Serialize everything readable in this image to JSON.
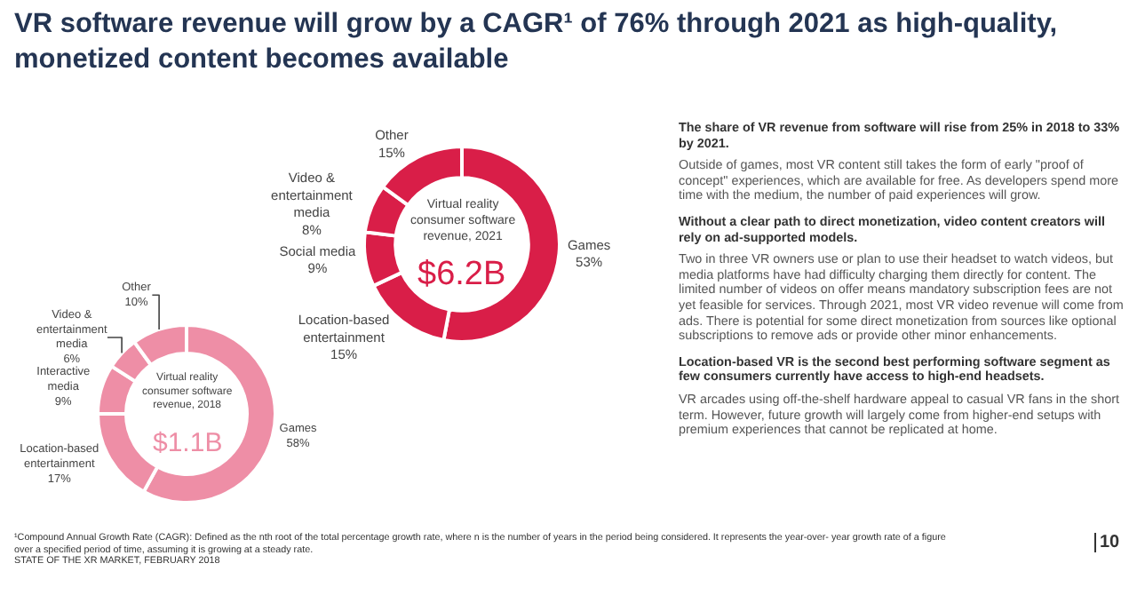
{
  "chart_data": [
    {
      "type": "donut",
      "title": "VR software revenue will grow by a CAGR¹ of 76% through 2021 as high-quality, monetized content becomes available",
      "categories": [
        "Games",
        "Location-based entertainment",
        "Social media",
        "Video & entertainment media",
        "Other"
      ],
      "values": [
        53,
        15,
        9,
        8,
        15
      ],
      "value_labels": [
        "53%",
        "15%",
        "9%",
        "8%",
        "15%"
      ],
      "colors": [
        "#d91e48",
        "#d91e48",
        "#d91e48",
        "#d91e48",
        "#d91e48"
      ],
      "annotations": [
        "Virtual reality consumer software revenue, 2021",
        "$6.2B"
      ]
    },
    {
      "type": "donut",
      "categories": [
        "Games",
        "Location-based entertainment",
        "Interactive media",
        "Video & entertainment media",
        "Other"
      ],
      "values": [
        58,
        17,
        9,
        6,
        10
      ],
      "value_labels": [
        "58%",
        "17%",
        "9%",
        "6%",
        "10%"
      ],
      "colors": [
        "#ee8ea6",
        "#ee8ea6",
        "#ee8ea6",
        "#ee8ea6",
        "#ee8ea6"
      ],
      "annotations": [
        "Virtual reality consumer software revenue, 2018",
        "$1.1B"
      ]
    },
    {
      "type": "other",
      "annotations": [
        "The share of VR revenue from software will rise from 25% in 2018 to 33% by 2021.",
        "Outside of games, most VR content still takes the form of early \"proof of concept\" experiences, which are available for free. As developers spend more time with the medium, the number of paid experiences will grow.",
        "Without a clear path to direct monetization, video content creators will rely on ad-supported models.",
        "Two in three VR owners use or plan to use their headset to watch videos, but media platforms have had difficulty charging them directly for content. The limited number of videos on offer means mandatory subscription fees are not yet feasible for services. Through 2021, most VR video revenue will come from ads. There is potential for some direct monetization from sources like optional subscriptions to remove ads or provide other minor enhancements.",
        "Location-based VR is the second best performing software segment as few consumers currently have access to high-end headsets.",
        "VR arcades using off-the-shelf hardware appeal to casual VR fans in the short term. However, future growth will largely come from higher-end setups with premium experiences that cannot be replicated at home.",
        "¹Compound Annual Growth Rate (CAGR): Defined as the nth root of the total percentage growth rate, where n is the number of years in the period being considered. It represents the year-over- year growth rate of a figure over a specified period of time, assuming it is growing at a steady rate.",
        "STATE OF THE XR MARKET, FEBRUARY 2018",
        "10"
      ]
    }
  ]
}
